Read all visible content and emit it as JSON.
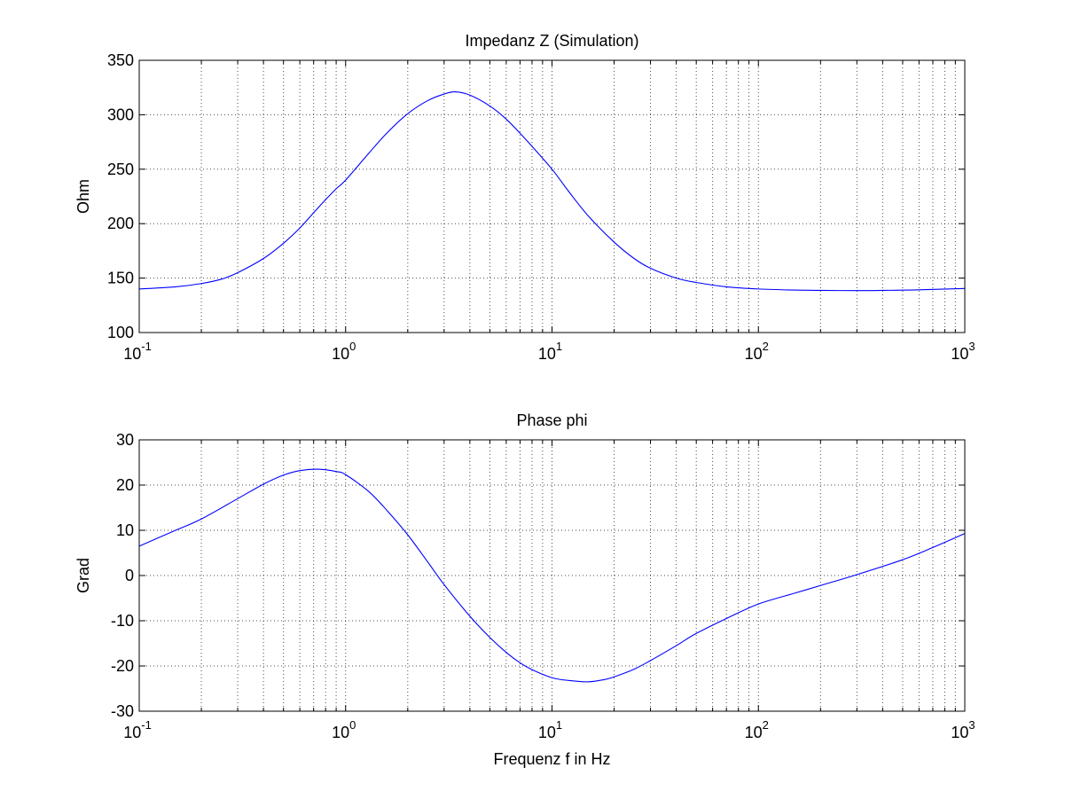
{
  "chart_data": [
    {
      "type": "line",
      "title": "Impedanz Z (Simulation)",
      "xlabel": "",
      "ylabel": "Ohm",
      "xscale": "log",
      "xlim": [
        0.1,
        1000
      ],
      "ylim": [
        100,
        350
      ],
      "yticks": [
        "100",
        "150",
        "200",
        "250",
        "300",
        "350"
      ],
      "xticks": [
        {
          "base": "10",
          "exp": "-1"
        },
        {
          "base": "10",
          "exp": "0"
        },
        {
          "base": "10",
          "exp": "1"
        },
        {
          "base": "10",
          "exp": "2"
        },
        {
          "base": "10",
          "exp": "3"
        }
      ],
      "grid": true,
      "color": "#0000ff",
      "series": [
        {
          "x": [
            0.1,
            0.15,
            0.2,
            0.25,
            0.3,
            0.4,
            0.5,
            0.6,
            0.7,
            0.8,
            0.9,
            1.0,
            1.3,
            1.6,
            2.0,
            2.5,
            3.0,
            3.4,
            4.0,
            5.0,
            6.0,
            7.0,
            8.0,
            10,
            12,
            15,
            20,
            25,
            30,
            40,
            50,
            70,
            100,
            150,
            200,
            300,
            400,
            600,
            1000
          ],
          "y": [
            140,
            142,
            145,
            149,
            155,
            168,
            182,
            196,
            210,
            222,
            232,
            240,
            265,
            284,
            301,
            313,
            319,
            321,
            318,
            308,
            296,
            283,
            271,
            250,
            230,
            207,
            183,
            168,
            159,
            150,
            146,
            142,
            140,
            139,
            138.7,
            138.5,
            138.7,
            139.2,
            140.5
          ]
        }
      ]
    },
    {
      "type": "line",
      "title": "Phase phi",
      "xlabel": "Frequenz f in Hz",
      "ylabel": "Grad",
      "xscale": "log",
      "xlim": [
        0.1,
        1000
      ],
      "ylim": [
        -30,
        30
      ],
      "yticks": [
        "-30",
        "-20",
        "-10",
        "0",
        "10",
        "20",
        "30"
      ],
      "xticks": [
        {
          "base": "10",
          "exp": "-1"
        },
        {
          "base": "10",
          "exp": "0"
        },
        {
          "base": "10",
          "exp": "1"
        },
        {
          "base": "10",
          "exp": "2"
        },
        {
          "base": "10",
          "exp": "3"
        }
      ],
      "grid": true,
      "color": "#0000ff",
      "series": [
        {
          "x": [
            0.1,
            0.15,
            0.2,
            0.3,
            0.4,
            0.5,
            0.6,
            0.75,
            0.9,
            1.0,
            1.3,
            1.6,
            2.0,
            2.5,
            3.0,
            4.0,
            5.0,
            6.0,
            7.0,
            8.0,
            10,
            12,
            15,
            18,
            20,
            25,
            30,
            40,
            50,
            70,
            100,
            150,
            200,
            300,
            500,
            700,
            1000
          ],
          "y": [
            6.5,
            10,
            12.5,
            17,
            20.2,
            22.2,
            23.2,
            23.5,
            23,
            22.3,
            18.5,
            14.2,
            9,
            3,
            -2,
            -9,
            -13.7,
            -17,
            -19.3,
            -20.8,
            -22.6,
            -23.2,
            -23.5,
            -23,
            -22.4,
            -20.7,
            -18.8,
            -15.5,
            -12.8,
            -9.5,
            -6.3,
            -3.9,
            -2.2,
            0.2,
            3.5,
            6.2,
            9.3
          ]
        }
      ]
    }
  ]
}
